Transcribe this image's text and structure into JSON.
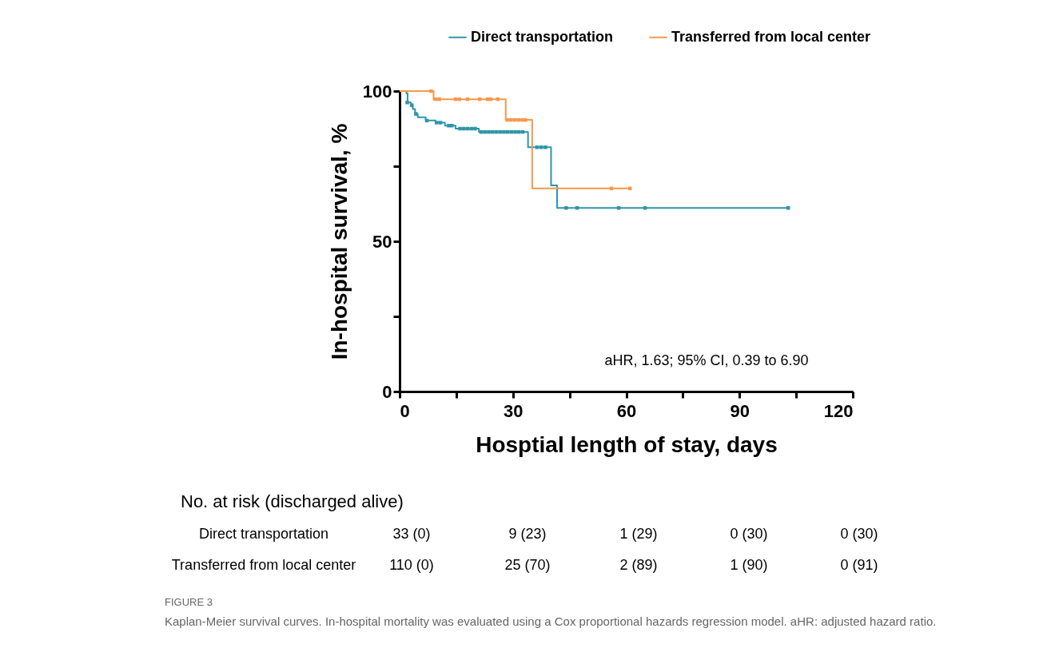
{
  "chart_data": {
    "type": "step",
    "xlabel": "Hosptial length of stay, days",
    "ylabel": "In-hospital survival, %",
    "xlim": [
      0,
      120
    ],
    "xticks": [
      0,
      {
        "value": 15,
        "label": null
      },
      30,
      {
        "value": 45,
        "label": null
      },
      60,
      {
        "value": 75,
        "label": null
      },
      90,
      {
        "value": 105,
        "label": null
      },
      120
    ],
    "ylim": [
      0,
      100
    ],
    "yticks": [
      0,
      {
        "value": 25,
        "label": null
      },
      50,
      {
        "value": 75,
        "label": null
      },
      100
    ],
    "grid": false,
    "legend": "top right",
    "line_style": "solid",
    "series": [
      {
        "name": "Direct transportation",
        "color": "#2e96a8",
        "x": [
          0,
          1.8,
          2.1,
          3.0,
          3.5,
          4.1,
          4.8,
          6.9,
          9.5,
          12.0,
          14.8,
          21.0,
          34.0,
          40.1,
          41.7,
          103
        ],
        "values": [
          100,
          99.3,
          96.2,
          95.3,
          94.0,
          92.4,
          91.3,
          90.2,
          89.5,
          88.5,
          87.5,
          86.4,
          81.3,
          68.6,
          61.1,
          61.1
        ]
      },
      {
        "name": "Transferred from local center",
        "color": "#f7984a",
        "x": [
          0,
          9.0,
          28.1,
          35.1,
          61
        ],
        "values": [
          100,
          97.3,
          90.4,
          67.6,
          67.6
        ]
      },
      {
        "color": "#2e96a8",
        "type": "scatter",
        "marker": "square",
        "x": [
          2.0,
          3.2,
          4.3,
          7.2,
          9.8,
          10.8,
          13,
          13.8,
          16,
          17,
          18,
          19,
          20,
          21.6,
          22.6,
          23.6,
          24.6,
          25.6,
          26.6,
          27.6,
          28.6,
          29.6,
          30.6,
          31.6,
          32.6,
          36.4,
          37.5,
          38.6,
          44.1,
          47.0,
          58.0,
          65.0,
          102.9
        ],
        "values": [
          96.2,
          95.3,
          92.4,
          90.2,
          89.5,
          89.5,
          88.5,
          88.5,
          87.5,
          87.5,
          87.5,
          87.5,
          87.5,
          86.4,
          86.4,
          86.4,
          86.4,
          86.4,
          86.4,
          86.4,
          86.4,
          86.4,
          86.4,
          86.4,
          86.4,
          81.3,
          81.3,
          81.3,
          61.1,
          61.1,
          61.1,
          61.1,
          61.1
        ]
      },
      {
        "color": "#f7984a",
        "type": "scatter",
        "marker": "square",
        "x": [
          8.3,
          9.5,
          10.5,
          14.8,
          15.9,
          18.0,
          21.2,
          23.3,
          24.1,
          26.0,
          28.5,
          29.5,
          30.5,
          31.5,
          32.5,
          33.3,
          56.1,
          61.0
        ],
        "values": [
          100,
          97.3,
          97.3,
          97.3,
          97.3,
          97.3,
          97.3,
          97.3,
          97.3,
          97.3,
          90.4,
          90.4,
          90.4,
          90.4,
          90.4,
          90.4,
          67.6,
          67.6
        ]
      }
    ],
    "annotations": [
      "aHR, 1.63; 95% CI, 0.39 to 6.90",
      "No. at risk (discharged alive)",
      "Direct transportation",
      "33 (0)",
      "9 (23)",
      "1 (29)",
      "0 (30)",
      "0 (30)",
      "Transferred from local center",
      "110 (0)",
      "25 (70)",
      "2 (89)",
      "1 (90)",
      "0 (91)",
      "FIGURE 3",
      "Kaplan-Meier survival curves. In-hospital mortality was evaluated using a Cox proportional hazards regression model. aHR: adjusted hazard ratio."
    ]
  }
}
